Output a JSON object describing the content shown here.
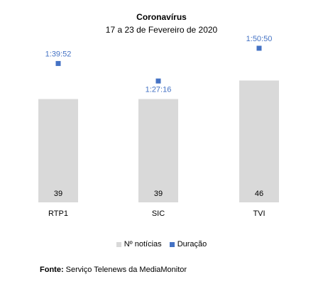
{
  "chart_data": {
    "type": "bar",
    "title": "Coronavírus",
    "subtitle": "17 a 23 de Fevereiro de 2020",
    "categories": [
      "RTP1",
      "SIC",
      "TVI"
    ],
    "series": [
      {
        "name": "Nº notícias",
        "values": [
          39,
          39,
          46
        ],
        "labels": [
          "39",
          "39",
          "46"
        ],
        "color": "#d9d9d9"
      },
      {
        "name": "Duração",
        "values": [
          5992,
          5236,
          6650
        ],
        "labels": [
          "1:39:52",
          "1:27:16",
          "1:50:50"
        ],
        "label_visible": [
          true,
          true,
          true
        ],
        "color": "#4472c4"
      }
    ],
    "label_color": "#4472c4",
    "legend_position": "bottom",
    "grid": false
  },
  "source": {
    "prefix": "Fonte:",
    "text": "Serviço Telenews da MediaMonitor"
  }
}
